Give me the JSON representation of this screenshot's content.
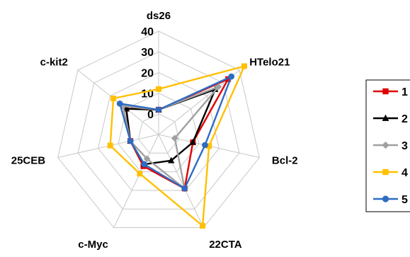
{
  "chart_data": {
    "type": "radar",
    "axes": [
      "ds26",
      "HTelo21",
      "Bcl-2",
      "22CTA",
      "c-Myc",
      "25CEB",
      "c-kit2"
    ],
    "r_ticks": [
      0,
      10,
      20,
      30,
      40
    ],
    "r_range": [
      -10,
      40
    ],
    "grid": true,
    "legend_position": "right",
    "series": [
      {
        "name": "1",
        "color": "#e00000",
        "marker": "square",
        "values": [
          2,
          33,
          7,
          19,
          7,
          4,
          10
        ]
      },
      {
        "name": "2",
        "color": "#000000",
        "marker": "triangle",
        "values": [
          2,
          25,
          7,
          4,
          6,
          4,
          10
        ]
      },
      {
        "name": "3",
        "color": "#a0a0a0",
        "marker": "diamond",
        "values": [
          2,
          27,
          -2,
          19,
          3,
          4,
          12
        ]
      },
      {
        "name": "4",
        "color": "#ffc000",
        "marker": "square",
        "values": [
          12,
          43,
          15,
          39,
          11,
          14,
          18
        ]
      },
      {
        "name": "5",
        "color": "#2e6bc2",
        "marker": "circle",
        "values": [
          2,
          35,
          13,
          19,
          6,
          4,
          14
        ]
      }
    ]
  }
}
